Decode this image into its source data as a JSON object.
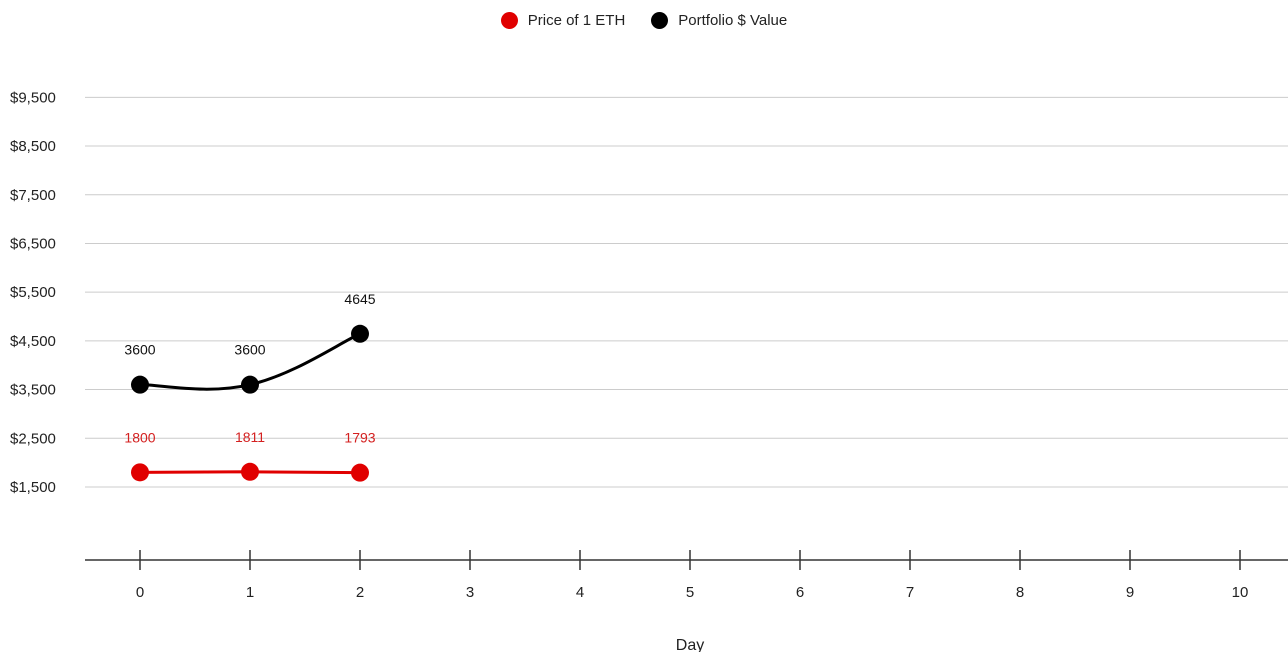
{
  "chart_data": {
    "type": "line",
    "title": "",
    "xlabel": "Day",
    "ylabel": "",
    "x": [
      0,
      1,
      2
    ],
    "x_ticks": [
      0,
      1,
      2,
      3,
      4,
      5,
      6,
      7,
      8,
      9,
      10
    ],
    "xlim": [
      -0.5,
      10.5
    ],
    "y_ticks": [
      1500,
      2500,
      3500,
      4500,
      5500,
      6500,
      7500,
      8500,
      9500
    ],
    "y_tick_labels": [
      "$1,500",
      "$2,500",
      "$3,500",
      "$4,500",
      "$5,500",
      "$6,500",
      "$7,500",
      "$8,500",
      "$9,500"
    ],
    "ylim": [
      0,
      9500
    ],
    "grid": true,
    "legend_position": "top",
    "series": [
      {
        "name": "Price of 1 ETH",
        "color": "#e00000",
        "values": [
          1800,
          1811,
          1793
        ],
        "labels": [
          "1800",
          "1811",
          "1793"
        ]
      },
      {
        "name": "Portfolio $ Value",
        "color": "#000000",
        "values": [
          3600,
          3600,
          4645
        ],
        "labels": [
          "3600",
          "3600",
          "4645"
        ]
      }
    ]
  }
}
